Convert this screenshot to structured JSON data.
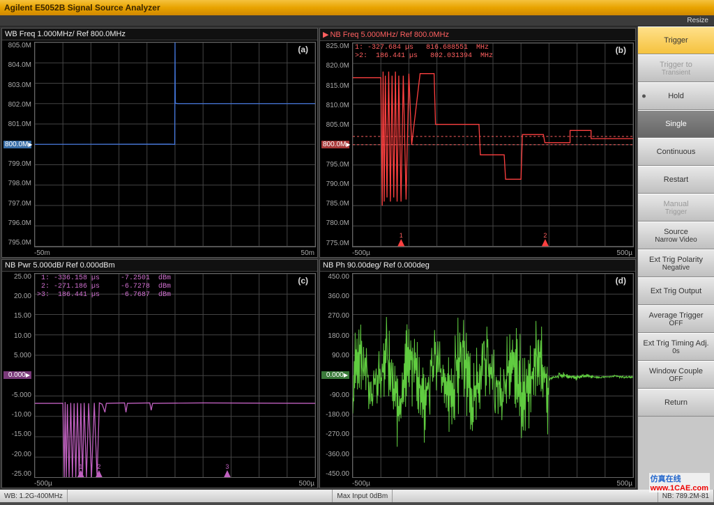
{
  "window": {
    "title": "Agilent E5052B Signal Source Analyzer",
    "resize_label": "Resize"
  },
  "colors": {
    "titlebar_start": "#f5c23e",
    "titlebar_end": "#d08800",
    "panel_bg": "#000000",
    "grid": "#444444",
    "trace_a": "#4477dd",
    "trace_b": "#ff4040",
    "trace_c": "#c060c0",
    "trace_d": "#60cc40",
    "softkey_highlight": "#f5c23e",
    "softkey_active": "#777777"
  },
  "charts": {
    "a": {
      "type": "line",
      "title": "WB Freq 1.000MHz/ Ref 800.0MHz",
      "corner": "(a)",
      "ylabels": [
        "805.0M",
        "804.0M",
        "803.0M",
        "802.0M",
        "801.0M",
        "800.0M",
        "799.0M",
        "798.0M",
        "797.0M",
        "796.0M",
        "795.0M"
      ],
      "ref_index": 5,
      "ref_class": "",
      "xmin": "-50m",
      "xmax": "50m",
      "ylim": [
        795,
        805
      ],
      "series": [
        {
          "color": "#4477dd",
          "points": [
            [
              -50,
              800.0
            ],
            [
              -2,
              800.01
            ],
            [
              -0.1,
              800
            ],
            [
              0,
              805
            ],
            [
              0.1,
              802.02
            ],
            [
              1,
              802.0
            ],
            [
              50,
              802.0
            ]
          ]
        }
      ]
    },
    "b": {
      "type": "line",
      "title": "NB Freq 5.000MHz/ Ref 800.0MHz",
      "active": true,
      "corner": "(b)",
      "ylabels": [
        "825.0M",
        "820.0M",
        "815.0M",
        "810.0M",
        "805.0M",
        "800.0M",
        "795.0M",
        "790.0M",
        "785.0M",
        "780.0M",
        "775.0M"
      ],
      "ref_index": 5,
      "ref_class": "red",
      "xmin": "-500µ",
      "xmax": "500µ",
      "ylim": [
        775,
        825
      ],
      "markers_text": "1: -327.684 µs   816.688551  MHz\n>2:  186.441 µs   802.031394  MHz",
      "marker_class": "red",
      "markers_x": [
        -327.684,
        186.441
      ],
      "series": [
        {
          "color": "#ff4040",
          "points": [
            [
              -500,
              816.5
            ],
            [
              -400,
              816.5
            ],
            [
              -395,
              785
            ],
            [
              -392,
              818
            ],
            [
              -388,
              786
            ],
            [
              -384,
              817
            ],
            [
              -378,
              787
            ],
            [
              -372,
              818
            ],
            [
              -366,
              786
            ],
            [
              -360,
              817
            ],
            [
              -354,
              787
            ],
            [
              -348,
              818
            ],
            [
              -342,
              786
            ],
            [
              -336,
              817
            ],
            [
              -328,
              786
            ],
            [
              -320,
              817
            ],
            [
              -310,
              786.5
            ],
            [
              -300,
              817.5
            ],
            [
              -290,
              800
            ],
            [
              -260,
              817.5
            ],
            [
              -210,
              817.5
            ],
            [
              -205,
              805
            ],
            [
              -50,
              805
            ],
            [
              -45,
              797.5
            ],
            [
              40,
              797.5
            ],
            [
              45,
              791.5
            ],
            [
              100,
              791.5
            ],
            [
              105,
              802.5
            ],
            [
              180,
              802.5
            ],
            [
              185,
              800.5
            ],
            [
              275,
              800.5
            ],
            [
              275,
              803.5
            ],
            [
              350,
              803.5
            ],
            [
              350,
              801.5
            ],
            [
              500,
              801.5
            ]
          ]
        }
      ],
      "hlines": [
        802.03,
        800.0
      ]
    },
    "c": {
      "type": "line",
      "title": "NB Pwr 5.000dB/ Ref 0.000dBm",
      "corner": "(c)",
      "ylabels": [
        "25.00",
        "20.00",
        "15.00",
        "10.00",
        "5.000",
        "0.000",
        "-5.000",
        "-10.00",
        "-15.00",
        "-20.00",
        "-25.00"
      ],
      "ref_index": 5,
      "ref_class": "mag",
      "xmin": "-500µ",
      "xmax": "500µ",
      "ylim": [
        -25,
        25
      ],
      "markers_text": " 1: -336.158 µs     -7.2501  dBm\n 2: -271.186 µs     -6.7278  dBm\n>3:  186.441 µs     -6.7687  dBm",
      "marker_class": "mag",
      "markers_x": [
        -336.158,
        -271.186,
        186.441
      ],
      "series": [
        {
          "color": "#c060c0",
          "points": [
            [
              -500,
              -6.8
            ],
            [
              -400,
              -6.8
            ],
            [
              -395,
              -25
            ],
            [
              -392,
              -6.5
            ],
            [
              -388,
              -25
            ],
            [
              -384,
              -7
            ],
            [
              -378,
              -25
            ],
            [
              -372,
              -6.7
            ],
            [
              -366,
              -25
            ],
            [
              -360,
              -6.8
            ],
            [
              -354,
              -25
            ],
            [
              -348,
              -6.7
            ],
            [
              -342,
              -25
            ],
            [
              -336,
              -6.8
            ],
            [
              -330,
              -25
            ],
            [
              -324,
              -6.7
            ],
            [
              -316,
              -25
            ],
            [
              -308,
              -6.8
            ],
            [
              -298,
              -25
            ],
            [
              -288,
              -6.7
            ],
            [
              -278,
              -25
            ],
            [
              -270,
              -6.7
            ],
            [
              -260,
              -7
            ],
            [
              -250,
              -9
            ],
            [
              -245,
              -6.8
            ],
            [
              -180,
              -6.7
            ],
            [
              -175,
              -9
            ],
            [
              -170,
              -6.8
            ],
            [
              -90,
              -6.7
            ],
            [
              -85,
              -8.5
            ],
            [
              -80,
              -6.8
            ],
            [
              100,
              -6.7
            ],
            [
              500,
              -6.8
            ]
          ]
        }
      ]
    },
    "d": {
      "type": "line",
      "title": "NB Ph 90.00deg/ Ref 0.000deg",
      "corner": "(d)",
      "ylabels": [
        "450.00",
        "360.00",
        "270.00",
        "180.00",
        "90.00",
        "0.000",
        "-90.00",
        "-180.00",
        "-270.00",
        "-360.00",
        "-450.00"
      ],
      "ref_index": 5,
      "ref_class": "grn",
      "xmin": "-500µ",
      "xmax": "500µ",
      "ylim": [
        -450,
        450
      ],
      "noise": {
        "color": "#60cc40",
        "x_end": 200,
        "amp_hi": 170,
        "amp_lo": 15,
        "mean": -5
      }
    }
  },
  "softkeys": [
    {
      "label": "Trigger",
      "style": "highlight"
    },
    {
      "label": "Trigger to",
      "sub": "Transient",
      "style": "disabled"
    },
    {
      "label": "Hold",
      "dot": true
    },
    {
      "label": "Single",
      "style": "active"
    },
    {
      "label": "Continuous"
    },
    {
      "label": "Restart"
    },
    {
      "label": "Manual",
      "sub": "Trigger",
      "style": "disabled"
    },
    {
      "label": "Source",
      "sub": "Narrow Video"
    },
    {
      "label": "Ext Trig Polarity",
      "sub": "Negative"
    },
    {
      "label": "Ext Trig Output"
    },
    {
      "label": "Average Trigger",
      "sub": "OFF"
    },
    {
      "label": "Ext Trig Timing Adj.",
      "sub": "0s"
    },
    {
      "label": "Window Couple",
      "sub": "OFF"
    },
    {
      "label": "Return"
    }
  ],
  "status": {
    "left": "WB: 1.2G-400MHz",
    "mid": "Max Input 0dBm",
    "right": "NB: 789.2M-81"
  },
  "watermark": {
    "cn": "仿真在线",
    "url": "www.1CAE.com"
  }
}
